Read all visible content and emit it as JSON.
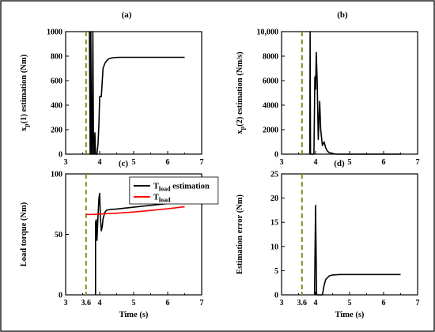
{
  "chart_data": [
    {
      "panel": "(a)",
      "type": "line",
      "xlim": [
        3,
        7
      ],
      "ylim": [
        0,
        1000
      ],
      "xticks": [
        3,
        4,
        5,
        6,
        7
      ],
      "yticks": [
        0,
        200,
        400,
        600,
        800,
        1000
      ],
      "ytick_labels": [
        "0",
        "200",
        "400",
        "600",
        "800",
        "1000"
      ],
      "xlabel": "",
      "ylabel_parts": [
        "x",
        "p",
        "(1) estimation (Nm)"
      ],
      "vline": 3.6,
      "series": [
        {
          "color": "#000000",
          "x": [
            3.7,
            3.72,
            3.74,
            3.76,
            3.78,
            3.8,
            3.82,
            3.84,
            3.86,
            3.88,
            3.9,
            3.92,
            3.95,
            3.98,
            4.0,
            4.05,
            4.1,
            4.15,
            4.2,
            4.25,
            4.3,
            4.4,
            4.5,
            4.6,
            4.8,
            5.0,
            5.5,
            6.0,
            6.5
          ],
          "y": [
            1000,
            0,
            1000,
            0,
            0,
            1000,
            0,
            0,
            175,
            0,
            0,
            0,
            80,
            250,
            470,
            470,
            700,
            740,
            760,
            775,
            782,
            787,
            789,
            790,
            790,
            790,
            790,
            790,
            790
          ]
        }
      ]
    },
    {
      "panel": "(b)",
      "type": "line",
      "xlim": [
        3,
        7
      ],
      "ylim": [
        0,
        10000
      ],
      "xticks": [
        3,
        4,
        5,
        6,
        7
      ],
      "yticks": [
        0,
        2000,
        4000,
        6000,
        8000,
        10000
      ],
      "ytick_labels": [
        "0",
        "2000",
        "4000",
        "6000",
        "8000",
        "10,000"
      ],
      "xlabel": "",
      "ylabel_parts": [
        "x",
        "p",
        "(2) estimation (Nm/s)"
      ],
      "vline": 3.6,
      "series": [
        {
          "color": "#000000",
          "x": [
            3.83,
            3.84,
            3.85,
            3.9,
            3.95,
            3.98,
            4.0,
            4.02,
            4.05,
            4.08,
            4.1,
            4.12,
            4.15,
            4.2,
            4.25,
            4.3,
            4.35,
            4.4,
            4.5,
            4.6,
            5.0,
            6.0,
            6.5
          ],
          "y": [
            0,
            10000,
            0,
            0,
            0,
            6300,
            5300,
            8300,
            5800,
            1200,
            2800,
            4300,
            2000,
            700,
            1000,
            500,
            250,
            120,
            50,
            0,
            0,
            0,
            0
          ]
        }
      ]
    },
    {
      "panel": "(c)",
      "type": "line",
      "xlim": [
        3,
        7
      ],
      "ylim": [
        0,
        100
      ],
      "xticks": [
        3,
        3.6,
        4,
        5,
        6,
        7
      ],
      "xtick_labels": [
        "3",
        "3.6",
        "4",
        "5",
        "6",
        "7"
      ],
      "yticks": [
        0,
        50,
        100
      ],
      "ytick_labels": [
        "0",
        "50",
        "100"
      ],
      "xlabel": "Time (s)",
      "ylabel": "Load torque (Nm)",
      "vline": 3.6,
      "legend": {
        "position": "top-center",
        "entries": [
          {
            "main": "T",
            "sub": "load",
            "rest": " estimation",
            "color": "#000000"
          },
          {
            "main": "T",
            "sub": "load",
            "rest": "",
            "color": "#ff0000"
          }
        ]
      },
      "series": [
        {
          "color": "#000000",
          "x": [
            3.88,
            3.88,
            3.9,
            3.92,
            3.95,
            3.98,
            4.0,
            4.02,
            4.05,
            4.08,
            4.1,
            4.15,
            4.2,
            4.3,
            4.5,
            5.0,
            5.5,
            6.0,
            6.5
          ],
          "y": [
            0,
            60,
            62,
            45,
            65,
            80,
            84,
            65,
            53,
            57,
            63,
            68,
            70,
            70.5,
            71,
            72.5,
            74,
            75.5,
            77
          ]
        },
        {
          "color": "#ff0000",
          "x": [
            3.6,
            3.8,
            4.0,
            4.5,
            5.0,
            5.5,
            6.0,
            6.5
          ],
          "y": [
            66.5,
            66.5,
            66.8,
            67.5,
            68.5,
            69.8,
            71.2,
            72.8
          ]
        }
      ]
    },
    {
      "panel": "(d)",
      "type": "line",
      "xlim": [
        3,
        7
      ],
      "ylim": [
        0,
        25
      ],
      "xticks": [
        3,
        3.6,
        4,
        5,
        6,
        7
      ],
      "xtick_labels": [
        "3",
        "3.6",
        "4",
        "5",
        "6",
        "7"
      ],
      "yticks": [
        0,
        5,
        10,
        15,
        20,
        25
      ],
      "ytick_labels": [
        "0",
        "5",
        "10",
        "15",
        "20",
        "25"
      ],
      "xlabel": "Time (s)",
      "ylabel": "Estimation error (Nm)",
      "vline": 3.6,
      "series": [
        {
          "color": "#000000",
          "x": [
            3.97,
            4.0,
            4.03,
            4.06,
            4.2,
            4.25,
            4.3,
            4.4,
            4.5,
            4.7,
            5.0,
            6.0,
            6.5
          ],
          "y": [
            0,
            18.5,
            0,
            0,
            0,
            2.0,
            3.2,
            3.9,
            4.1,
            4.2,
            4.2,
            4.2,
            4.2
          ]
        }
      ]
    }
  ]
}
